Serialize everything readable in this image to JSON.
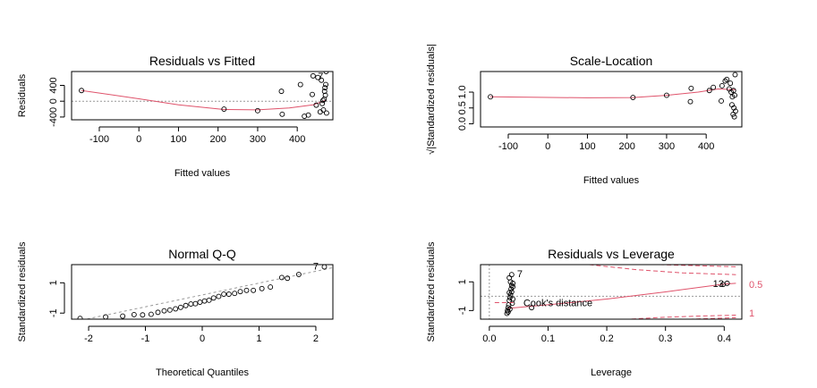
{
  "chart_data": [
    {
      "type": "scatter",
      "title": "Residuals vs Fitted",
      "xlabel": "Fitted values",
      "ylabel": "Residuals",
      "xlim": [
        -170,
        490
      ],
      "ylim": [
        -470,
        750
      ],
      "xticks": [
        -100,
        0,
        100,
        200,
        300,
        400
      ],
      "xtick_labels": [
        "-100",
        "0",
        "100",
        "200",
        "300",
        "400"
      ],
      "yticks": [
        -400,
        0,
        400
      ],
      "ytick_labels": [
        "-400",
        "0",
        "400"
      ],
      "hline": 0,
      "points": [
        {
          "x": -145,
          "y": 270
        },
        {
          "x": 215,
          "y": -200
        },
        {
          "x": 300,
          "y": -240
        },
        {
          "x": 360,
          "y": 250
        },
        {
          "x": 362,
          "y": -330
        },
        {
          "x": 408,
          "y": 420
        },
        {
          "x": 418,
          "y": -380
        },
        {
          "x": 428,
          "y": -350
        },
        {
          "x": 438,
          "y": 170
        },
        {
          "x": 440,
          "y": 640
        },
        {
          "x": 448,
          "y": -100
        },
        {
          "x": 452,
          "y": 600
        },
        {
          "x": 458,
          "y": -270
        },
        {
          "x": 461,
          "y": 530
        },
        {
          "x": 463,
          "y": -60
        },
        {
          "x": 465,
          "y": 20
        },
        {
          "x": 466,
          "y": -220
        },
        {
          "x": 468,
          "y": 50
        },
        {
          "x": 469,
          "y": 250
        },
        {
          "x": 470,
          "y": 340
        },
        {
          "x": 471,
          "y": 150
        },
        {
          "x": 472,
          "y": 420
        },
        {
          "x": 473,
          "y": 750
        },
        {
          "x": 474,
          "y": -300
        }
      ],
      "smooth": [
        {
          "x": -145,
          "y": 270
        },
        {
          "x": 0,
          "y": 60
        },
        {
          "x": 100,
          "y": -90
        },
        {
          "x": 215,
          "y": -210
        },
        {
          "x": 300,
          "y": -220
        },
        {
          "x": 380,
          "y": -170
        },
        {
          "x": 440,
          "y": -90
        },
        {
          "x": 474,
          "y": 30
        }
      ],
      "point_labels": [
        {
          "text": "7",
          "x": 459,
          "y": 620
        }
      ]
    },
    {
      "type": "scatter",
      "title": "Scale-Location",
      "xlabel": "Fitted values",
      "ylabel": "√|Standardized residuals|",
      "xlim": [
        -170,
        490
      ],
      "ylim": [
        -0.1,
        1.65
      ],
      "xticks": [
        -100,
        0,
        100,
        200,
        300,
        400
      ],
      "xtick_labels": [
        "-100",
        "0",
        "100",
        "200",
        "300",
        "400"
      ],
      "yticks": [
        0,
        0.5,
        1
      ],
      "ytick_labels": [
        "0.0",
        "0.5",
        "1.0"
      ],
      "points": [
        {
          "x": -145,
          "y": 0.85
        },
        {
          "x": 215,
          "y": 0.83
        },
        {
          "x": 300,
          "y": 0.9
        },
        {
          "x": 360,
          "y": 0.7
        },
        {
          "x": 362,
          "y": 1.12
        },
        {
          "x": 408,
          "y": 1.05
        },
        {
          "x": 418,
          "y": 1.15
        },
        {
          "x": 438,
          "y": 0.72
        },
        {
          "x": 440,
          "y": 1.2
        },
        {
          "x": 448,
          "y": 1.35
        },
        {
          "x": 452,
          "y": 1.4
        },
        {
          "x": 458,
          "y": 1.1
        },
        {
          "x": 461,
          "y": 1.28
        },
        {
          "x": 463,
          "y": 1.0
        },
        {
          "x": 465,
          "y": 0.6
        },
        {
          "x": 466,
          "y": 0.85
        },
        {
          "x": 468,
          "y": 0.3
        },
        {
          "x": 469,
          "y": 1.05
        },
        {
          "x": 470,
          "y": 0.5
        },
        {
          "x": 471,
          "y": 0.22
        },
        {
          "x": 472,
          "y": 0.9
        },
        {
          "x": 473,
          "y": 1.55
        },
        {
          "x": 474,
          "y": 0.4
        }
      ],
      "smooth": [
        {
          "x": -145,
          "y": 0.85
        },
        {
          "x": 100,
          "y": 0.82
        },
        {
          "x": 215,
          "y": 0.83
        },
        {
          "x": 300,
          "y": 0.9
        },
        {
          "x": 380,
          "y": 1.0
        },
        {
          "x": 430,
          "y": 1.1
        },
        {
          "x": 474,
          "y": 1.08
        }
      ]
    },
    {
      "type": "scatter",
      "title": "Normal Q-Q",
      "xlabel": "Theoretical Quantiles",
      "ylabel": "Standardized residuals",
      "xlim": [
        -2.3,
        2.3
      ],
      "ylim": [
        -1.4,
        2.2
      ],
      "xticks": [
        -2,
        -1,
        0,
        1,
        2
      ],
      "xtick_labels": [
        "-2",
        "-1",
        "0",
        "1",
        "2"
      ],
      "yticks": [
        -1,
        1
      ],
      "ytick_labels": [
        "-1",
        "1"
      ],
      "refline": [
        {
          "x": -2.3,
          "y": -1.6
        },
        {
          "x": 2.3,
          "y": 2.0
        }
      ],
      "points": [
        {
          "x": -2.15,
          "y": -1.35
        },
        {
          "x": -1.7,
          "y": -1.25
        },
        {
          "x": -1.4,
          "y": -1.2
        },
        {
          "x": -1.2,
          "y": -1.1
        },
        {
          "x": -1.05,
          "y": -1.12
        },
        {
          "x": -0.9,
          "y": -1.08
        },
        {
          "x": -0.78,
          "y": -0.95
        },
        {
          "x": -0.67,
          "y": -0.85
        },
        {
          "x": -0.57,
          "y": -0.8
        },
        {
          "x": -0.47,
          "y": -0.72
        },
        {
          "x": -0.38,
          "y": -0.62
        },
        {
          "x": -0.29,
          "y": -0.5
        },
        {
          "x": -0.2,
          "y": -0.4
        },
        {
          "x": -0.12,
          "y": -0.38
        },
        {
          "x": -0.04,
          "y": -0.28
        },
        {
          "x": 0.04,
          "y": -0.2
        },
        {
          "x": 0.12,
          "y": -0.15
        },
        {
          "x": 0.2,
          "y": 0.0
        },
        {
          "x": 0.29,
          "y": 0.1
        },
        {
          "x": 0.38,
          "y": 0.25
        },
        {
          "x": 0.47,
          "y": 0.25
        },
        {
          "x": 0.57,
          "y": 0.3
        },
        {
          "x": 0.67,
          "y": 0.42
        },
        {
          "x": 0.78,
          "y": 0.5
        },
        {
          "x": 0.9,
          "y": 0.5
        },
        {
          "x": 1.05,
          "y": 0.62
        },
        {
          "x": 1.2,
          "y": 0.72
        },
        {
          "x": 1.4,
          "y": 1.35
        },
        {
          "x": 1.5,
          "y": 1.3
        },
        {
          "x": 1.7,
          "y": 1.55
        },
        {
          "x": 2.15,
          "y": 2.05
        }
      ],
      "point_labels": [
        {
          "text": "7",
          "x": 2.0,
          "y": 2.05
        }
      ]
    },
    {
      "type": "scatter",
      "title": "Residuals vs Leverage",
      "xlabel": "Leverage",
      "ylabel": "Standardized residuals",
      "xlim": [
        -0.015,
        0.43
      ],
      "ylim": [
        -1.6,
        2.2
      ],
      "xticks": [
        0,
        0.1,
        0.2,
        0.3,
        0.4
      ],
      "xtick_labels": [
        "0.0",
        "0.1",
        "0.2",
        "0.3",
        "0.4"
      ],
      "yticks": [
        -1,
        1
      ],
      "ytick_labels": [
        "-1",
        "1"
      ],
      "legend_text": "Cook's distance",
      "contour_labels": [
        "0.5",
        "1"
      ],
      "contours": [
        {
          "level": "0.5",
          "sign": 1,
          "points": [
            {
              "x": 0.17,
              "y": 2.2
            },
            {
              "x": 0.25,
              "y": 1.85
            },
            {
              "x": 0.33,
              "y": 1.62
            },
            {
              "x": 0.42,
              "y": 1.5
            }
          ]
        },
        {
          "level": "1",
          "sign": 1,
          "points": [
            {
              "x": 0.29,
              "y": 2.2
            },
            {
              "x": 0.36,
              "y": 2.12
            },
            {
              "x": 0.42,
              "y": 2.05
            }
          ]
        },
        {
          "level": "0.5",
          "sign": -1,
          "points": [
            {
              "x": 0.17,
              "y": -2.2
            },
            {
              "x": 0.25,
              "y": -1.85
            },
            {
              "x": 0.33,
              "y": -1.62
            },
            {
              "x": 0.42,
              "y": -1.5
            }
          ]
        },
        {
          "level": "1",
          "sign": -1,
          "points": [
            {
              "x": 0.23,
              "y": -1.62
            },
            {
              "x": 0.3,
              "y": -1.46
            },
            {
              "x": 0.36,
              "y": -1.38
            },
            {
              "x": 0.42,
              "y": -1.32
            }
          ]
        }
      ],
      "smooth": [
        {
          "x": 0.03,
          "y": -0.85
        },
        {
          "x": 0.1,
          "y": -0.6
        },
        {
          "x": 0.2,
          "y": -0.2
        },
        {
          "x": 0.3,
          "y": 0.3
        },
        {
          "x": 0.4,
          "y": 0.85
        },
        {
          "x": 0.42,
          "y": 0.9
        }
      ],
      "points": [
        {
          "x": 0.03,
          "y": -1.2
        },
        {
          "x": 0.031,
          "y": -1.0
        },
        {
          "x": 0.032,
          "y": -0.8
        },
        {
          "x": 0.033,
          "y": -0.6
        },
        {
          "x": 0.034,
          "y": -0.3
        },
        {
          "x": 0.035,
          "y": -0.1
        },
        {
          "x": 0.036,
          "y": 0.1
        },
        {
          "x": 0.034,
          "y": 0.25
        },
        {
          "x": 0.037,
          "y": 0.5
        },
        {
          "x": 0.038,
          "y": 0.75
        },
        {
          "x": 0.036,
          "y": 1.0
        },
        {
          "x": 0.034,
          "y": 1.28
        },
        {
          "x": 0.038,
          "y": 1.5
        },
        {
          "x": 0.04,
          "y": 0.9
        },
        {
          "x": 0.04,
          "y": 0.65
        },
        {
          "x": 0.039,
          "y": -0.5
        },
        {
          "x": 0.032,
          "y": -1.1
        },
        {
          "x": 0.04,
          "y": -0.2
        },
        {
          "x": 0.038,
          "y": 0.3
        },
        {
          "x": 0.035,
          "y": -0.9
        },
        {
          "x": 0.072,
          "y": -0.8
        },
        {
          "x": 0.398,
          "y": 0.82
        },
        {
          "x": 0.405,
          "y": 0.9
        }
      ],
      "point_labels": [
        {
          "text": "7",
          "x": 0.052,
          "y": 1.52
        },
        {
          "text": "13",
          "x": 0.39,
          "y": 0.82
        }
      ]
    }
  ]
}
